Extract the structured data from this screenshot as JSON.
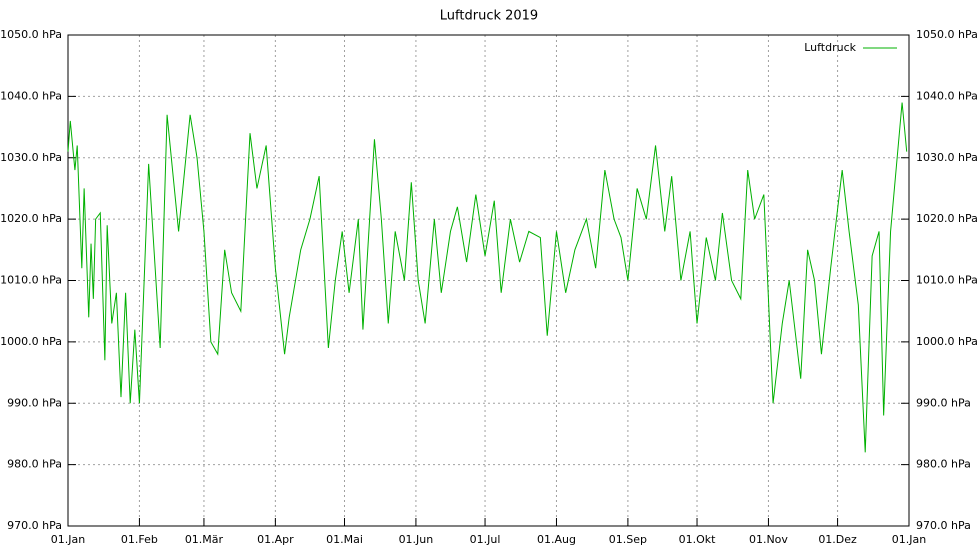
{
  "chart_data": {
    "type": "line",
    "title": "Luftdruck 2019",
    "x": [
      "2019-01-01",
      "2019-01-02",
      "2019-01-04",
      "2019-01-05",
      "2019-01-07",
      "2019-01-08",
      "2019-01-10",
      "2019-01-11",
      "2019-01-12",
      "2019-01-13",
      "2019-01-15",
      "2019-01-17",
      "2019-01-18",
      "2019-01-20",
      "2019-01-22",
      "2019-01-24",
      "2019-01-26",
      "2019-01-28",
      "2019-01-30",
      "2019-02-01",
      "2019-02-05",
      "2019-02-10",
      "2019-02-13",
      "2019-02-18",
      "2019-02-23",
      "2019-02-26",
      "2019-03-01",
      "2019-03-04",
      "2019-03-07",
      "2019-03-10",
      "2019-03-13",
      "2019-03-17",
      "2019-03-21",
      "2019-03-24",
      "2019-03-28",
      "2019-04-01",
      "2019-04-05",
      "2019-04-07",
      "2019-04-12",
      "2019-04-16",
      "2019-04-20",
      "2019-04-24",
      "2019-04-27",
      "2019-04-30",
      "2019-05-03",
      "2019-05-07",
      "2019-05-09",
      "2019-05-14",
      "2019-05-17",
      "2019-05-20",
      "2019-05-23",
      "2019-05-27",
      "2019-05-30",
      "2019-06-02",
      "2019-06-05",
      "2019-06-09",
      "2019-06-12",
      "2019-06-16",
      "2019-06-19",
      "2019-06-23",
      "2019-06-27",
      "2019-07-01",
      "2019-07-05",
      "2019-07-08",
      "2019-07-12",
      "2019-07-16",
      "2019-07-20",
      "2019-07-25",
      "2019-07-28",
      "2019-08-01",
      "2019-08-05",
      "2019-08-09",
      "2019-08-14",
      "2019-08-18",
      "2019-08-22",
      "2019-08-26",
      "2019-08-29",
      "2019-09-01",
      "2019-09-05",
      "2019-09-09",
      "2019-09-13",
      "2019-09-17",
      "2019-09-20",
      "2019-09-24",
      "2019-09-28",
      "2019-10-01",
      "2019-10-05",
      "2019-10-09",
      "2019-10-12",
      "2019-10-16",
      "2019-10-20",
      "2019-10-23",
      "2019-10-26",
      "2019-10-30",
      "2019-11-03",
      "2019-11-07",
      "2019-11-10",
      "2019-11-15",
      "2019-11-18",
      "2019-11-21",
      "2019-11-24",
      "2019-11-28",
      "2019-12-03",
      "2019-12-06",
      "2019-12-10",
      "2019-12-13",
      "2019-12-16",
      "2019-12-19",
      "2019-12-21",
      "2019-12-24",
      "2019-12-29",
      "2019-12-31"
    ],
    "series": [
      {
        "name": "Luftdruck",
        "color": "#00b000",
        "values": [
          1031,
          1036,
          1028,
          1032,
          1012,
          1025,
          1004,
          1016,
          1007,
          1020,
          1021,
          997,
          1019,
          1003,
          1008,
          991,
          1008,
          990,
          1002,
          990,
          1029,
          999,
          1037,
          1018,
          1037,
          1030,
          1018,
          1000,
          998,
          1015,
          1008,
          1005,
          1034,
          1025,
          1032,
          1012,
          998,
          1004,
          1015,
          1020,
          1027,
          999,
          1010,
          1018,
          1008,
          1020,
          1002,
          1033,
          1020,
          1003,
          1018,
          1010,
          1026,
          1010,
          1003,
          1020,
          1008,
          1018,
          1022,
          1013,
          1024,
          1014,
          1023,
          1008,
          1020,
          1013,
          1018,
          1017,
          1001,
          1018,
          1008,
          1015,
          1020,
          1012,
          1028,
          1020,
          1017,
          1010,
          1025,
          1020,
          1032,
          1018,
          1027,
          1010,
          1018,
          1003,
          1017,
          1010,
          1021,
          1010,
          1007,
          1028,
          1020,
          1024,
          990,
          1003,
          1010,
          994,
          1015,
          1010,
          998,
          1012,
          1028,
          1018,
          1006,
          982,
          1014,
          1018,
          988,
          1018,
          1039,
          1031
        ]
      }
    ],
    "xlim": [
      "2019-01-01",
      "2020-01-01"
    ],
    "xticks": [
      {
        "value": "2019-01-01",
        "label": "01.Jan"
      },
      {
        "value": "2019-02-01",
        "label": "01.Feb"
      },
      {
        "value": "2019-03-01",
        "label": "01.Mär"
      },
      {
        "value": "2019-04-01",
        "label": "01.Apr"
      },
      {
        "value": "2019-05-01",
        "label": "01.Mai"
      },
      {
        "value": "2019-06-01",
        "label": "01.Jun"
      },
      {
        "value": "2019-07-01",
        "label": "01.Jul"
      },
      {
        "value": "2019-08-01",
        "label": "01.Aug"
      },
      {
        "value": "2019-09-01",
        "label": "01.Sep"
      },
      {
        "value": "2019-10-01",
        "label": "01.Okt"
      },
      {
        "value": "2019-11-01",
        "label": "01.Nov"
      },
      {
        "value": "2019-12-01",
        "label": "01.Dez"
      },
      {
        "value": "2020-01-01",
        "label": "01.Jan"
      }
    ],
    "ylim": [
      970,
      1050
    ],
    "yticks": [
      {
        "value": 970,
        "label": "970.0 hPa"
      },
      {
        "value": 980,
        "label": "980.0 hPa"
      },
      {
        "value": 990,
        "label": "990.0 hPa"
      },
      {
        "value": 1000,
        "label": "1000.0 hPa"
      },
      {
        "value": 1010,
        "label": "1010.0 hPa"
      },
      {
        "value": 1020,
        "label": "1020.0 hPa"
      },
      {
        "value": 1030,
        "label": "1030.0 hPa"
      },
      {
        "value": 1040,
        "label": "1040.0 hPa"
      },
      {
        "value": 1050,
        "label": "1050.0 hPa"
      }
    ],
    "grid": true,
    "legend": "top-right"
  }
}
